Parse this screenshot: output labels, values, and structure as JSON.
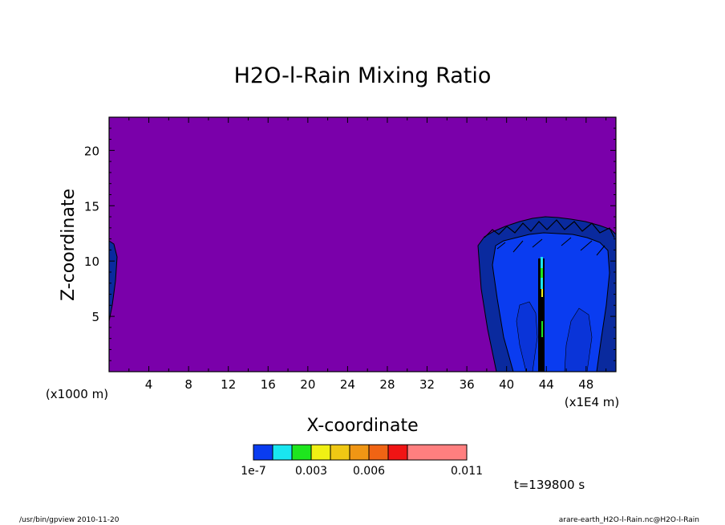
{
  "chart_data": {
    "type": "heatmap",
    "title": "H2O-l-Rain Mixing Ratio",
    "xlabel": "X-coordinate",
    "ylabel": "Z-coordinate",
    "x_unit_left": "(x1000 m)",
    "x_unit_right": "(x1E4 m)",
    "xlim": [
      0,
      51
    ],
    "ylim": [
      0,
      23
    ],
    "x_ticks": [
      4,
      8,
      12,
      16,
      20,
      24,
      28,
      32,
      36,
      40,
      44,
      48
    ],
    "y_ticks": [
      5,
      10,
      15,
      20
    ],
    "background_color": "#7a00aa",
    "colorbar": {
      "colors": [
        "#0a3cf0",
        "#19e6f0",
        "#1ee61e",
        "#f0f014",
        "#f0c814",
        "#f09614",
        "#f06414",
        "#f01414",
        "#ff7f7f"
      ],
      "labels": [
        "1e-7",
        "0.003",
        "0.006",
        "0.011"
      ],
      "label_positions": [
        0,
        0.003,
        0.006,
        0.011
      ]
    },
    "time_label": "t=139800 s"
  },
  "footer": {
    "left": "/usr/bin/gpview  2010-11-20",
    "right": "arare-earth_H2O-l-Rain.nc@H2O-l-Rain"
  }
}
